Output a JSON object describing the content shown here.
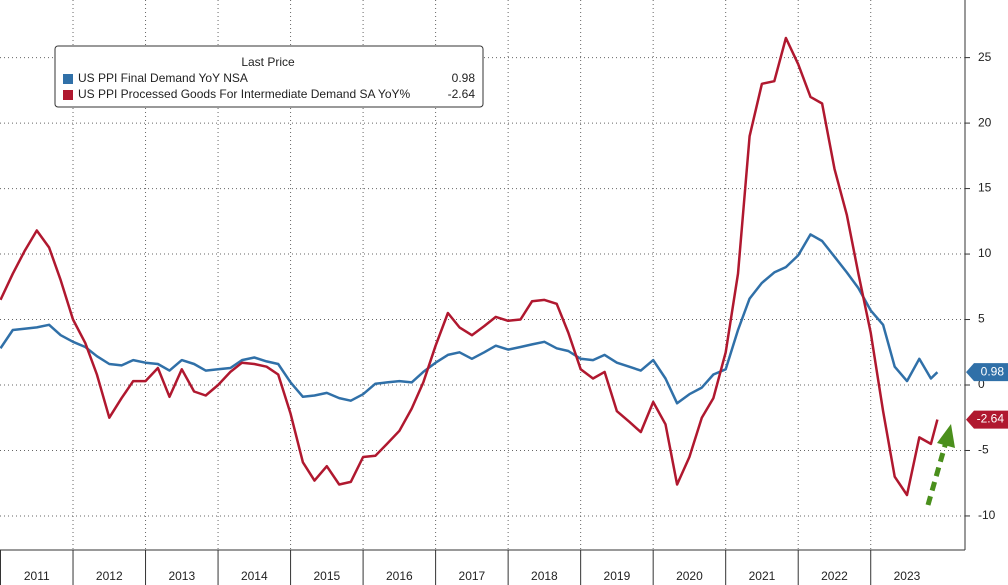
{
  "chart_data": {
    "type": "line",
    "legend_title": "Last Price",
    "x": [
      2011.0,
      2011.17,
      2011.33,
      2011.5,
      2011.67,
      2011.83,
      2012.0,
      2012.17,
      2012.33,
      2012.5,
      2012.67,
      2012.83,
      2013.0,
      2013.17,
      2013.33,
      2013.5,
      2013.67,
      2013.83,
      2014.0,
      2014.17,
      2014.33,
      2014.5,
      2014.67,
      2014.83,
      2015.0,
      2015.17,
      2015.33,
      2015.5,
      2015.67,
      2015.83,
      2016.0,
      2016.17,
      2016.33,
      2016.5,
      2016.67,
      2016.83,
      2017.0,
      2017.17,
      2017.33,
      2017.5,
      2017.67,
      2017.83,
      2018.0,
      2018.17,
      2018.33,
      2018.5,
      2018.67,
      2018.83,
      2019.0,
      2019.17,
      2019.33,
      2019.5,
      2019.67,
      2019.83,
      2020.0,
      2020.17,
      2020.33,
      2020.5,
      2020.67,
      2020.83,
      2021.0,
      2021.17,
      2021.33,
      2021.5,
      2021.67,
      2021.83,
      2022.0,
      2022.17,
      2022.33,
      2022.5,
      2022.67,
      2022.83,
      2023.0,
      2023.17,
      2023.33,
      2023.5,
      2023.67,
      2023.83,
      2023.92
    ],
    "series": [
      {
        "name": "US PPI Final Demand YoY NSA",
        "color": "#3070a8",
        "last_value": 0.98,
        "values": [
          2.8,
          4.2,
          4.3,
          4.4,
          4.6,
          3.8,
          3.3,
          2.9,
          2.2,
          1.6,
          1.5,
          1.9,
          1.7,
          1.6,
          1.1,
          1.9,
          1.6,
          1.1,
          1.2,
          1.3,
          1.9,
          2.1,
          1.8,
          1.6,
          0.2,
          -0.9,
          -0.8,
          -0.6,
          -1.0,
          -1.2,
          -0.7,
          0.1,
          0.2,
          0.3,
          0.2,
          1.0,
          1.7,
          2.3,
          2.5,
          2.0,
          2.5,
          3.0,
          2.7,
          2.9,
          3.1,
          3.3,
          2.8,
          2.6,
          2.0,
          1.9,
          2.3,
          1.7,
          1.4,
          1.1,
          1.9,
          0.5,
          -1.4,
          -0.7,
          -0.2,
          0.8,
          1.2,
          4.2,
          6.6,
          7.8,
          8.6,
          9.0,
          9.9,
          11.5,
          11.0,
          9.8,
          8.6,
          7.4,
          5.7,
          4.6,
          1.4,
          0.3,
          2.0,
          0.5,
          0.98
        ]
      },
      {
        "name": "US PPI Processed Goods For Intermediate Demand SA YoY%",
        "color": "#b0182f",
        "last_value": -2.64,
        "values": [
          6.5,
          8.5,
          10.2,
          11.8,
          10.5,
          8.0,
          5.0,
          3.2,
          0.8,
          -2.5,
          -1.0,
          0.3,
          0.3,
          1.3,
          -0.9,
          1.2,
          -0.5,
          -0.8,
          0.0,
          1.0,
          1.7,
          1.6,
          1.4,
          0.8,
          -2.2,
          -5.9,
          -7.3,
          -6.2,
          -7.6,
          -7.4,
          -5.5,
          -5.4,
          -4.5,
          -3.5,
          -1.8,
          0.2,
          3.0,
          5.5,
          4.4,
          3.8,
          4.5,
          5.2,
          4.9,
          5.0,
          6.4,
          6.5,
          6.2,
          4.0,
          1.2,
          0.5,
          1.0,
          -2.0,
          -2.8,
          -3.6,
          -1.3,
          -3.0,
          -7.6,
          -5.5,
          -2.5,
          -1.0,
          2.5,
          8.5,
          19.0,
          23.0,
          23.2,
          26.5,
          24.5,
          22.0,
          21.5,
          16.5,
          13.0,
          8.5,
          4.0,
          -2.0,
          -7.0,
          -8.4,
          -4.0,
          -4.5,
          -2.64
        ]
      }
    ],
    "xlim": [
      2011,
      2024.3
    ],
    "xticks": [
      2011,
      2012,
      2013,
      2014,
      2015,
      2016,
      2017,
      2018,
      2019,
      2020,
      2021,
      2022,
      2023
    ],
    "ylim": [
      -12.6,
      29.4
    ],
    "yticks": [
      -10,
      -5,
      0,
      5,
      10,
      15,
      20,
      25
    ],
    "grid": true
  }
}
